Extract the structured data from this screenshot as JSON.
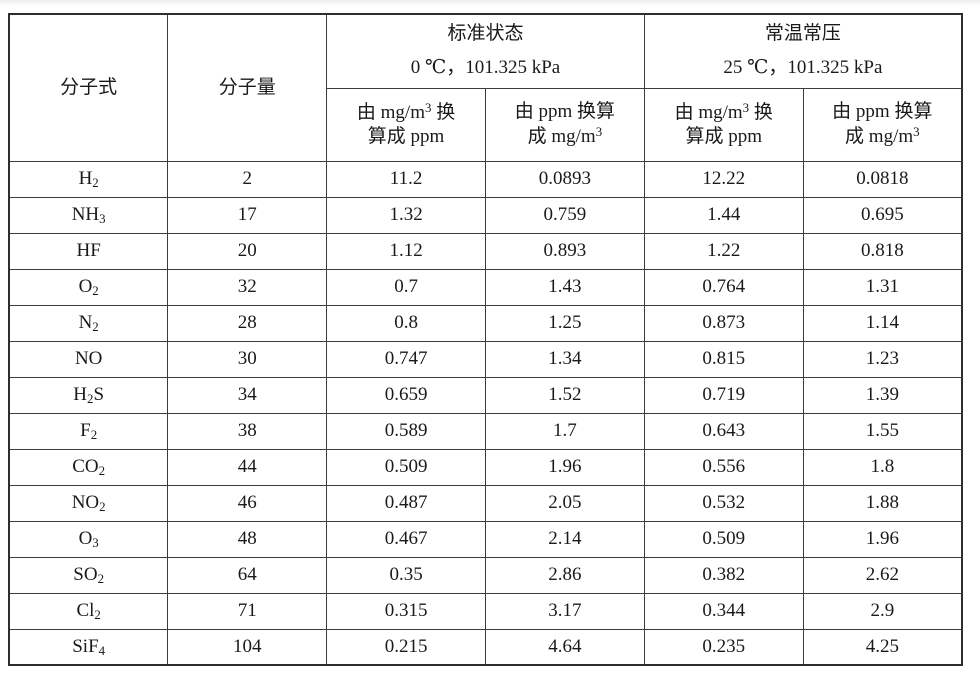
{
  "table": {
    "col1_header": "分子式",
    "col2_header": "分子量",
    "groups": [
      {
        "title": "标准状态",
        "condition": "0 ℃，101.325 kPa"
      },
      {
        "title": "常温常压",
        "condition": "25 ℃，101.325 kPa"
      }
    ],
    "sub_headers": [
      "由 mg/m^3 换\n算成 ppm",
      "由 ppm 换算\n成 mg/m^3",
      "由 mg/m^3 换\n算成 ppm",
      "由 ppm 换算\n成 mg/m^3"
    ],
    "rows": [
      {
        "formula": "H~2",
        "weight": "2",
        "std_mg2ppm": "11.2",
        "std_ppm2mg": "0.0893",
        "ntp_mg2ppm": "12.22",
        "ntp_ppm2mg": "0.0818"
      },
      {
        "formula": "NH~3",
        "weight": "17",
        "std_mg2ppm": "1.32",
        "std_ppm2mg": "0.759",
        "ntp_mg2ppm": "1.44",
        "ntp_ppm2mg": "0.695"
      },
      {
        "formula": "HF",
        "weight": "20",
        "std_mg2ppm": "1.12",
        "std_ppm2mg": "0.893",
        "ntp_mg2ppm": "1.22",
        "ntp_ppm2mg": "0.818"
      },
      {
        "formula": "O~2",
        "weight": "32",
        "std_mg2ppm": "0.7",
        "std_ppm2mg": "1.43",
        "ntp_mg2ppm": "0.764",
        "ntp_ppm2mg": "1.31"
      },
      {
        "formula": "N~2",
        "weight": "28",
        "std_mg2ppm": "0.8",
        "std_ppm2mg": "1.25",
        "ntp_mg2ppm": "0.873",
        "ntp_ppm2mg": "1.14"
      },
      {
        "formula": "NO",
        "weight": "30",
        "std_mg2ppm": "0.747",
        "std_ppm2mg": "1.34",
        "ntp_mg2ppm": "0.815",
        "ntp_ppm2mg": "1.23"
      },
      {
        "formula": "H~2S",
        "weight": "34",
        "std_mg2ppm": "0.659",
        "std_ppm2mg": "1.52",
        "ntp_mg2ppm": "0.719",
        "ntp_ppm2mg": "1.39"
      },
      {
        "formula": "F~2",
        "weight": "38",
        "std_mg2ppm": "0.589",
        "std_ppm2mg": "1.7",
        "ntp_mg2ppm": "0.643",
        "ntp_ppm2mg": "1.55"
      },
      {
        "formula": "CO~2",
        "weight": "44",
        "std_mg2ppm": "0.509",
        "std_ppm2mg": "1.96",
        "ntp_mg2ppm": "0.556",
        "ntp_ppm2mg": "1.8"
      },
      {
        "formula": "NO~2",
        "weight": "46",
        "std_mg2ppm": "0.487",
        "std_ppm2mg": "2.05",
        "ntp_mg2ppm": "0.532",
        "ntp_ppm2mg": "1.88"
      },
      {
        "formula": "O~3",
        "weight": "48",
        "std_mg2ppm": "0.467",
        "std_ppm2mg": "2.14",
        "ntp_mg2ppm": "0.509",
        "ntp_ppm2mg": "1.96"
      },
      {
        "formula": "SO~2",
        "weight": "64",
        "std_mg2ppm": "0.35",
        "std_ppm2mg": "2.86",
        "ntp_mg2ppm": "0.382",
        "ntp_ppm2mg": "2.62"
      },
      {
        "formula": "Cl~2",
        "weight": "71",
        "std_mg2ppm": "0.315",
        "std_ppm2mg": "3.17",
        "ntp_mg2ppm": "0.344",
        "ntp_ppm2mg": "2.9"
      },
      {
        "formula": "SiF~4",
        "weight": "104",
        "std_mg2ppm": "0.215",
        "std_ppm2mg": "4.64",
        "ntp_mg2ppm": "0.235",
        "ntp_ppm2mg": "4.25"
      }
    ]
  }
}
